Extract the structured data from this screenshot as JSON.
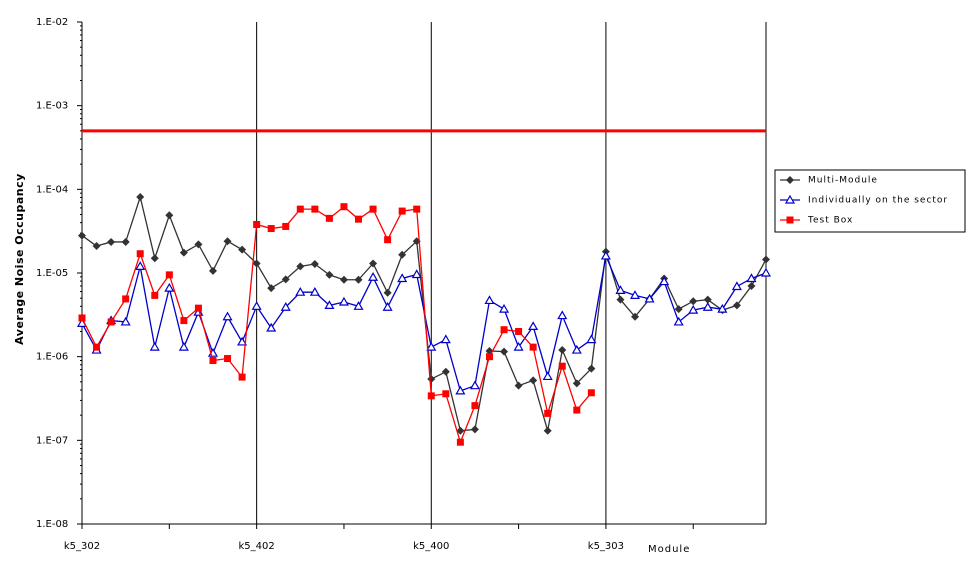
{
  "chart_data": {
    "type": "line",
    "y_label": "Average Noise Occupancy",
    "x_label": "Module",
    "log_y": true,
    "ylim": [
      1e-08,
      0.01
    ],
    "yticks": [
      {
        "value": 1e-08,
        "label": "1.E-08"
      },
      {
        "value": 1e-07,
        "label": "1.E-07"
      },
      {
        "value": 1e-06,
        "label": "1.E-06"
      },
      {
        "value": 1e-05,
        "label": "1.E-05"
      },
      {
        "value": 0.0001,
        "label": "1.E-04"
      },
      {
        "value": 0.001,
        "label": "1.E-03"
      },
      {
        "value": 0.01,
        "label": "1.E-02"
      }
    ],
    "threshold": 0.0005,
    "threshold_color": "#ff0000",
    "categories": [
      "k5_302",
      null,
      null,
      null,
      null,
      null,
      null,
      null,
      null,
      null,
      null,
      null,
      "k5_402",
      null,
      null,
      null,
      null,
      null,
      null,
      null,
      null,
      null,
      null,
      null,
      "k5_400",
      null,
      null,
      null,
      null,
      null,
      null,
      null,
      null,
      null,
      null,
      null,
      "k5_303",
      null,
      null,
      null,
      null,
      null,
      null,
      null,
      null,
      null,
      null,
      null
    ],
    "series": [
      {
        "name": "Multi-Module",
        "color": "#333333",
        "marker": "diamond",
        "values": [
          2.8e-05,
          2.1e-05,
          2.35e-05,
          2.35e-05,
          8.1e-05,
          1.5e-05,
          4.9e-05,
          1.75e-05,
          2.2e-05,
          1.06e-05,
          2.4e-05,
          1.9e-05,
          1.3e-05,
          6.6e-06,
          8.4e-06,
          1.2e-05,
          1.28e-05,
          9.5e-06,
          8.3e-06,
          8.3e-06,
          1.3e-05,
          5.8e-06,
          1.65e-05,
          2.4e-05,
          5.4e-07,
          6.6e-07,
          1.3e-07,
          1.35e-07,
          1.17e-06,
          1.15e-06,
          4.5e-07,
          5.2e-07,
          1.3e-07,
          1.2e-06,
          4.8e-07,
          7.2e-07,
          1.8e-05,
          4.8e-06,
          3e-06,
          4.9e-06,
          8.6e-06,
          3.7e-06,
          4.6e-06,
          4.8e-06,
          3.6e-06,
          4.1e-06,
          7e-06,
          1.45e-05
        ]
      },
      {
        "name": "Individually on the sector",
        "color": "#0000cc",
        "marker": "triangle",
        "values": [
          2.5e-06,
          1.2e-06,
          2.7e-06,
          2.6e-06,
          1.2e-05,
          1.3e-06,
          6.6e-06,
          1.3e-06,
          3.4e-06,
          1.1e-06,
          3e-06,
          1.5e-06,
          4e-06,
          2.2e-06,
          3.9e-06,
          5.9e-06,
          5.9e-06,
          4.1e-06,
          4.5e-06,
          4e-06,
          8.9e-06,
          3.9e-06,
          8.6e-06,
          9.6e-06,
          1.3e-06,
          1.6e-06,
          3.9e-07,
          4.5e-07,
          4.7e-06,
          3.7e-06,
          1.3e-06,
          2.3e-06,
          5.8e-07,
          3.1e-06,
          1.2e-06,
          1.6e-06,
          1.6e-05,
          6.2e-06,
          5.4e-06,
          4.9e-06,
          7.9e-06,
          2.6e-06,
          3.6e-06,
          3.9e-06,
          3.7e-06,
          6.9e-06,
          8.6e-06,
          1e-05
        ]
      },
      {
        "name": "Test Box",
        "color": "#ff0000",
        "marker": "square",
        "values": [
          2.9e-06,
          1.3e-06,
          2.6e-06,
          4.9e-06,
          1.7e-05,
          5.4e-06,
          9.5e-06,
          2.7e-06,
          3.8e-06,
          9e-07,
          9.5e-07,
          5.7e-07,
          3.8e-05,
          3.4e-05,
          3.6e-05,
          5.8e-05,
          5.8e-05,
          4.5e-05,
          6.2e-05,
          4.4e-05,
          5.8e-05,
          2.5e-05,
          5.5e-05,
          5.8e-05,
          3.4e-07,
          3.6e-07,
          9.5e-08,
          2.6e-07,
          1e-06,
          2.1e-06,
          2e-06,
          1.3e-06,
          2.1e-07,
          7.7e-07,
          2.3e-07,
          3.7e-07,
          null,
          null,
          null,
          null,
          null,
          null,
          null,
          null,
          null,
          null,
          null,
          null
        ]
      }
    ],
    "legend": "right"
  }
}
